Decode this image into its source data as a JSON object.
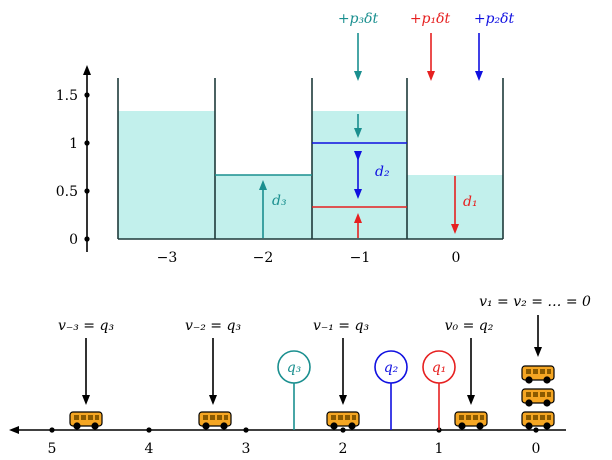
{
  "colors": {
    "fill": "#c2f0ec",
    "teal": "#1a8f8f",
    "red": "#e62020",
    "blue": "#1010e0",
    "black": "#000000",
    "bus_body": "#f5a623",
    "bus_window": "#8a5a00"
  },
  "top_panel": {
    "y_ticks": [
      "0",
      "0.5",
      "1",
      "1.5"
    ],
    "x_ticks": [
      "−3",
      "−2",
      "−1",
      "0"
    ],
    "inflow_labels": {
      "p3": "+p₃δt",
      "p1": "+p₁δt",
      "p2": "+p₂δt"
    },
    "d_labels": {
      "d1": "d₁",
      "d2": "d₂",
      "d3": "d₃"
    },
    "levels": {
      "bin_m3": 1.32,
      "bin_m2": 0.66,
      "bin_m1": 1.32,
      "bin_0": 0.66,
      "line_blue": 1.0,
      "line_red": 0.33
    }
  },
  "bottom_panel": {
    "axis_ticks": [
      "5",
      "4",
      "3",
      "2",
      "1",
      "0"
    ],
    "velocity_labels": {
      "vm3": "v₋₃ = q₃",
      "vm2": "v₋₂ = q₃",
      "vm1": "v₋₁ = q₃",
      "v0": "v₀ = q₂",
      "vrest": "v₁ = v₂ = … = 0"
    },
    "pins": {
      "q3": "q₃",
      "q2": "q₂",
      "q1": "q₁"
    }
  }
}
